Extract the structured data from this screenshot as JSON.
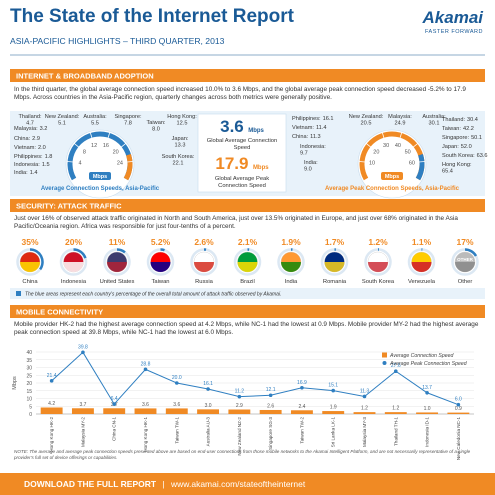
{
  "header": {
    "title": "The State of the Internet Report",
    "subtitle": "ASIA-PACIFIC HIGHLIGHTS – THIRD QUARTER, 2013",
    "logo": "Akamai",
    "tagline": "FASTER FORWARD"
  },
  "broadband": {
    "heading": "INTERNET & BROADBAND ADOPTION",
    "text": "In the third quarter, the global average connection speed increased 10.0% to 3.6 Mbps, and the global average peak connection speed decreased -5.2% to 17.9 Mbps. Across countries in the Asia-Pacific region, quarterly changes across both metrics were generally positive.",
    "average": {
      "caption": "Average Connection Speeds, Asia-Pacific",
      "unit": "Mbps",
      "lim": [
        0,
        28
      ],
      "ticks": [
        4,
        8,
        12,
        16,
        20,
        24
      ],
      "countries": [
        {
          "name": "Thailand:",
          "value": "4.7"
        },
        {
          "name": "New Zealand:",
          "value": "5.1"
        },
        {
          "name": "Australia:",
          "value": "5.5"
        },
        {
          "name": "Singapore:",
          "value": "7.8"
        },
        {
          "name": "Taiwan:",
          "value": "8.0"
        },
        {
          "name": "Hong Kong:",
          "value": "12.5"
        },
        {
          "name": "Malaysia:",
          "value": "3.2"
        },
        {
          "name": "China:",
          "value": "2.9"
        },
        {
          "name": "Vietnam:",
          "value": "2.0"
        },
        {
          "name": "Philippines:",
          "value": "1.8"
        },
        {
          "name": "Indonesia:",
          "value": "1.5"
        },
        {
          "name": "India:",
          "value": "1.4"
        },
        {
          "name": "Japan:",
          "value": "13.3"
        },
        {
          "name": "South Korea:",
          "value": "22.1"
        }
      ]
    },
    "global_average": {
      "value": "3.6",
      "unit": "Mbps",
      "label": "Global Average Connection Speed"
    },
    "global_peak": {
      "value": "17.9",
      "unit": "Mbps",
      "label": "Global Average Peak Connection Speed"
    },
    "peak": {
      "caption": "Average Peak Connection Speeds, Asia-Pacific",
      "unit": "Mbps",
      "lim": [
        0,
        70
      ],
      "ticks": [
        10,
        20,
        30,
        40,
        50,
        60
      ],
      "countries": [
        {
          "name": "Philippines:",
          "value": "16.1"
        },
        {
          "name": "Vietnam:",
          "value": "11.4"
        },
        {
          "name": "China:",
          "value": "11.3"
        },
        {
          "name": "Indonesia:",
          "value": "9.7"
        },
        {
          "name": "India:",
          "value": "9.0"
        },
        {
          "name": "New Zealand:",
          "value": "20.5"
        },
        {
          "name": "Malaysia:",
          "value": "24.9"
        },
        {
          "name": "Australia:",
          "value": "30.1"
        },
        {
          "name": "Thailand:",
          "value": "30.4"
        },
        {
          "name": "Taiwan:",
          "value": "42.2"
        },
        {
          "name": "Singapore:",
          "value": "50.1"
        },
        {
          "name": "Japan:",
          "value": "52.0"
        },
        {
          "name": "South Korea:",
          "value": "63.6"
        },
        {
          "name": "Hong Kong:",
          "value": "65.4"
        }
      ]
    }
  },
  "security": {
    "heading": "SECURITY: ATTACK TRAFFIC",
    "text": "Just over 16% of observed attack traffic originated in North and South America, just over 13.5% originated in Europe, and just over 68% originated in the Asia Pacific/Oceania region. Africa was responsible for just four-tenths of a percent.",
    "countries": [
      {
        "name": "China",
        "value": 35,
        "label": "35%"
      },
      {
        "name": "Indonesia",
        "value": 20,
        "label": "20%"
      },
      {
        "name": "United States",
        "value": 11,
        "label": "11%"
      },
      {
        "name": "Taiwan",
        "value": 5.2,
        "label": "5.2%"
      },
      {
        "name": "Russia",
        "value": 2.6,
        "label": "2.6%"
      },
      {
        "name": "Brazil",
        "value": 2.1,
        "label": "2.1%"
      },
      {
        "name": "India",
        "value": 1.9,
        "label": "1.9%"
      },
      {
        "name": "Romania",
        "value": 1.7,
        "label": "1.7%"
      },
      {
        "name": "South Korea",
        "value": 1.2,
        "label": "1.2%"
      },
      {
        "name": "Venezuela",
        "value": 1.1,
        "label": "1.1%"
      },
      {
        "name": "Other",
        "value": 17,
        "label": "17%"
      }
    ],
    "other_badge": "OTHER",
    "note": "The blue areas represent each country's percentage of the overall total amount of attack traffic observed by Akamai."
  },
  "mobile": {
    "heading": "MOBILE CONNECTIVITY",
    "text": "Mobile provider HK-2 had the highest average connection speed at 4.2 Mbps, while NC-1 had the lowest at 0.9 Mbps. Mobile provider MY-2 had the highest average peak connection speed at 39.8 Mbps, while NC-1 had the lowest at 6.0 Mbps.",
    "chart_data": {
      "type": "bar",
      "y_label": "Mbps",
      "categories": [
        "Hong Kong HK-2",
        "Malaysia MY-2",
        "China CN-1",
        "Hong Kong HK-1",
        "Taiwan TW-1",
        "Australia AU-3",
        "New Zealand NZ-2",
        "Singapore SG-3",
        "Taiwan TW-2",
        "Sri Lanka LK-1",
        "Malaysia MY-3",
        "Thailand TH-1",
        "Indonesia ID-1",
        "New Caledonia NC-1"
      ],
      "series": [
        {
          "name": "Average Connection Speed",
          "color": "#f08a24",
          "values": [
            4.2,
            3.7,
            3.7,
            3.6,
            3.6,
            3.0,
            2.9,
            2.6,
            2.4,
            1.9,
            1.2,
            1.2,
            1.0,
            0.9
          ],
          "value_labels": [
            "4.2",
            "3.7",
            "3.7",
            "3.6",
            "3.6",
            "3.0",
            "2.9",
            "2.6",
            "2.4",
            "1.9",
            "1.2",
            "1.2",
            "1.0",
            "0.9"
          ]
        },
        {
          "name": "Average Peak Connection Speed",
          "color": "#2f7fc1",
          "values": [
            21.4,
            39.8,
            6.4,
            28.8,
            20.0,
            16.1,
            11.2,
            12.1,
            16.9,
            15.1,
            11.3,
            27.6,
            13.7,
            6.0
          ],
          "value_labels": [
            "21.4",
            "39.8",
            "6.4",
            "28.8",
            "20.0",
            "16.1",
            "11.2",
            "12.1",
            "16.9",
            "15.1",
            "11.3",
            "27.6",
            "13.7",
            "6.0"
          ]
        }
      ],
      "ylim": [
        0,
        40
      ],
      "yticks": [
        0,
        5,
        10,
        15,
        20,
        25,
        30,
        35,
        40
      ],
      "grid": true,
      "legend": "upper right"
    },
    "note": "NOTE: The average and average peak connection speeds presented above are based on end-user connections from those mobile networks to the Akamai Intelligent Platform, and are not necessarily representative of a single provider's full set of device offerings or capabilities."
  },
  "footer": {
    "label": "DOWNLOAD THE FULL REPORT",
    "separator": "|",
    "url": "www.akamai.com/stateoftheinternet"
  }
}
